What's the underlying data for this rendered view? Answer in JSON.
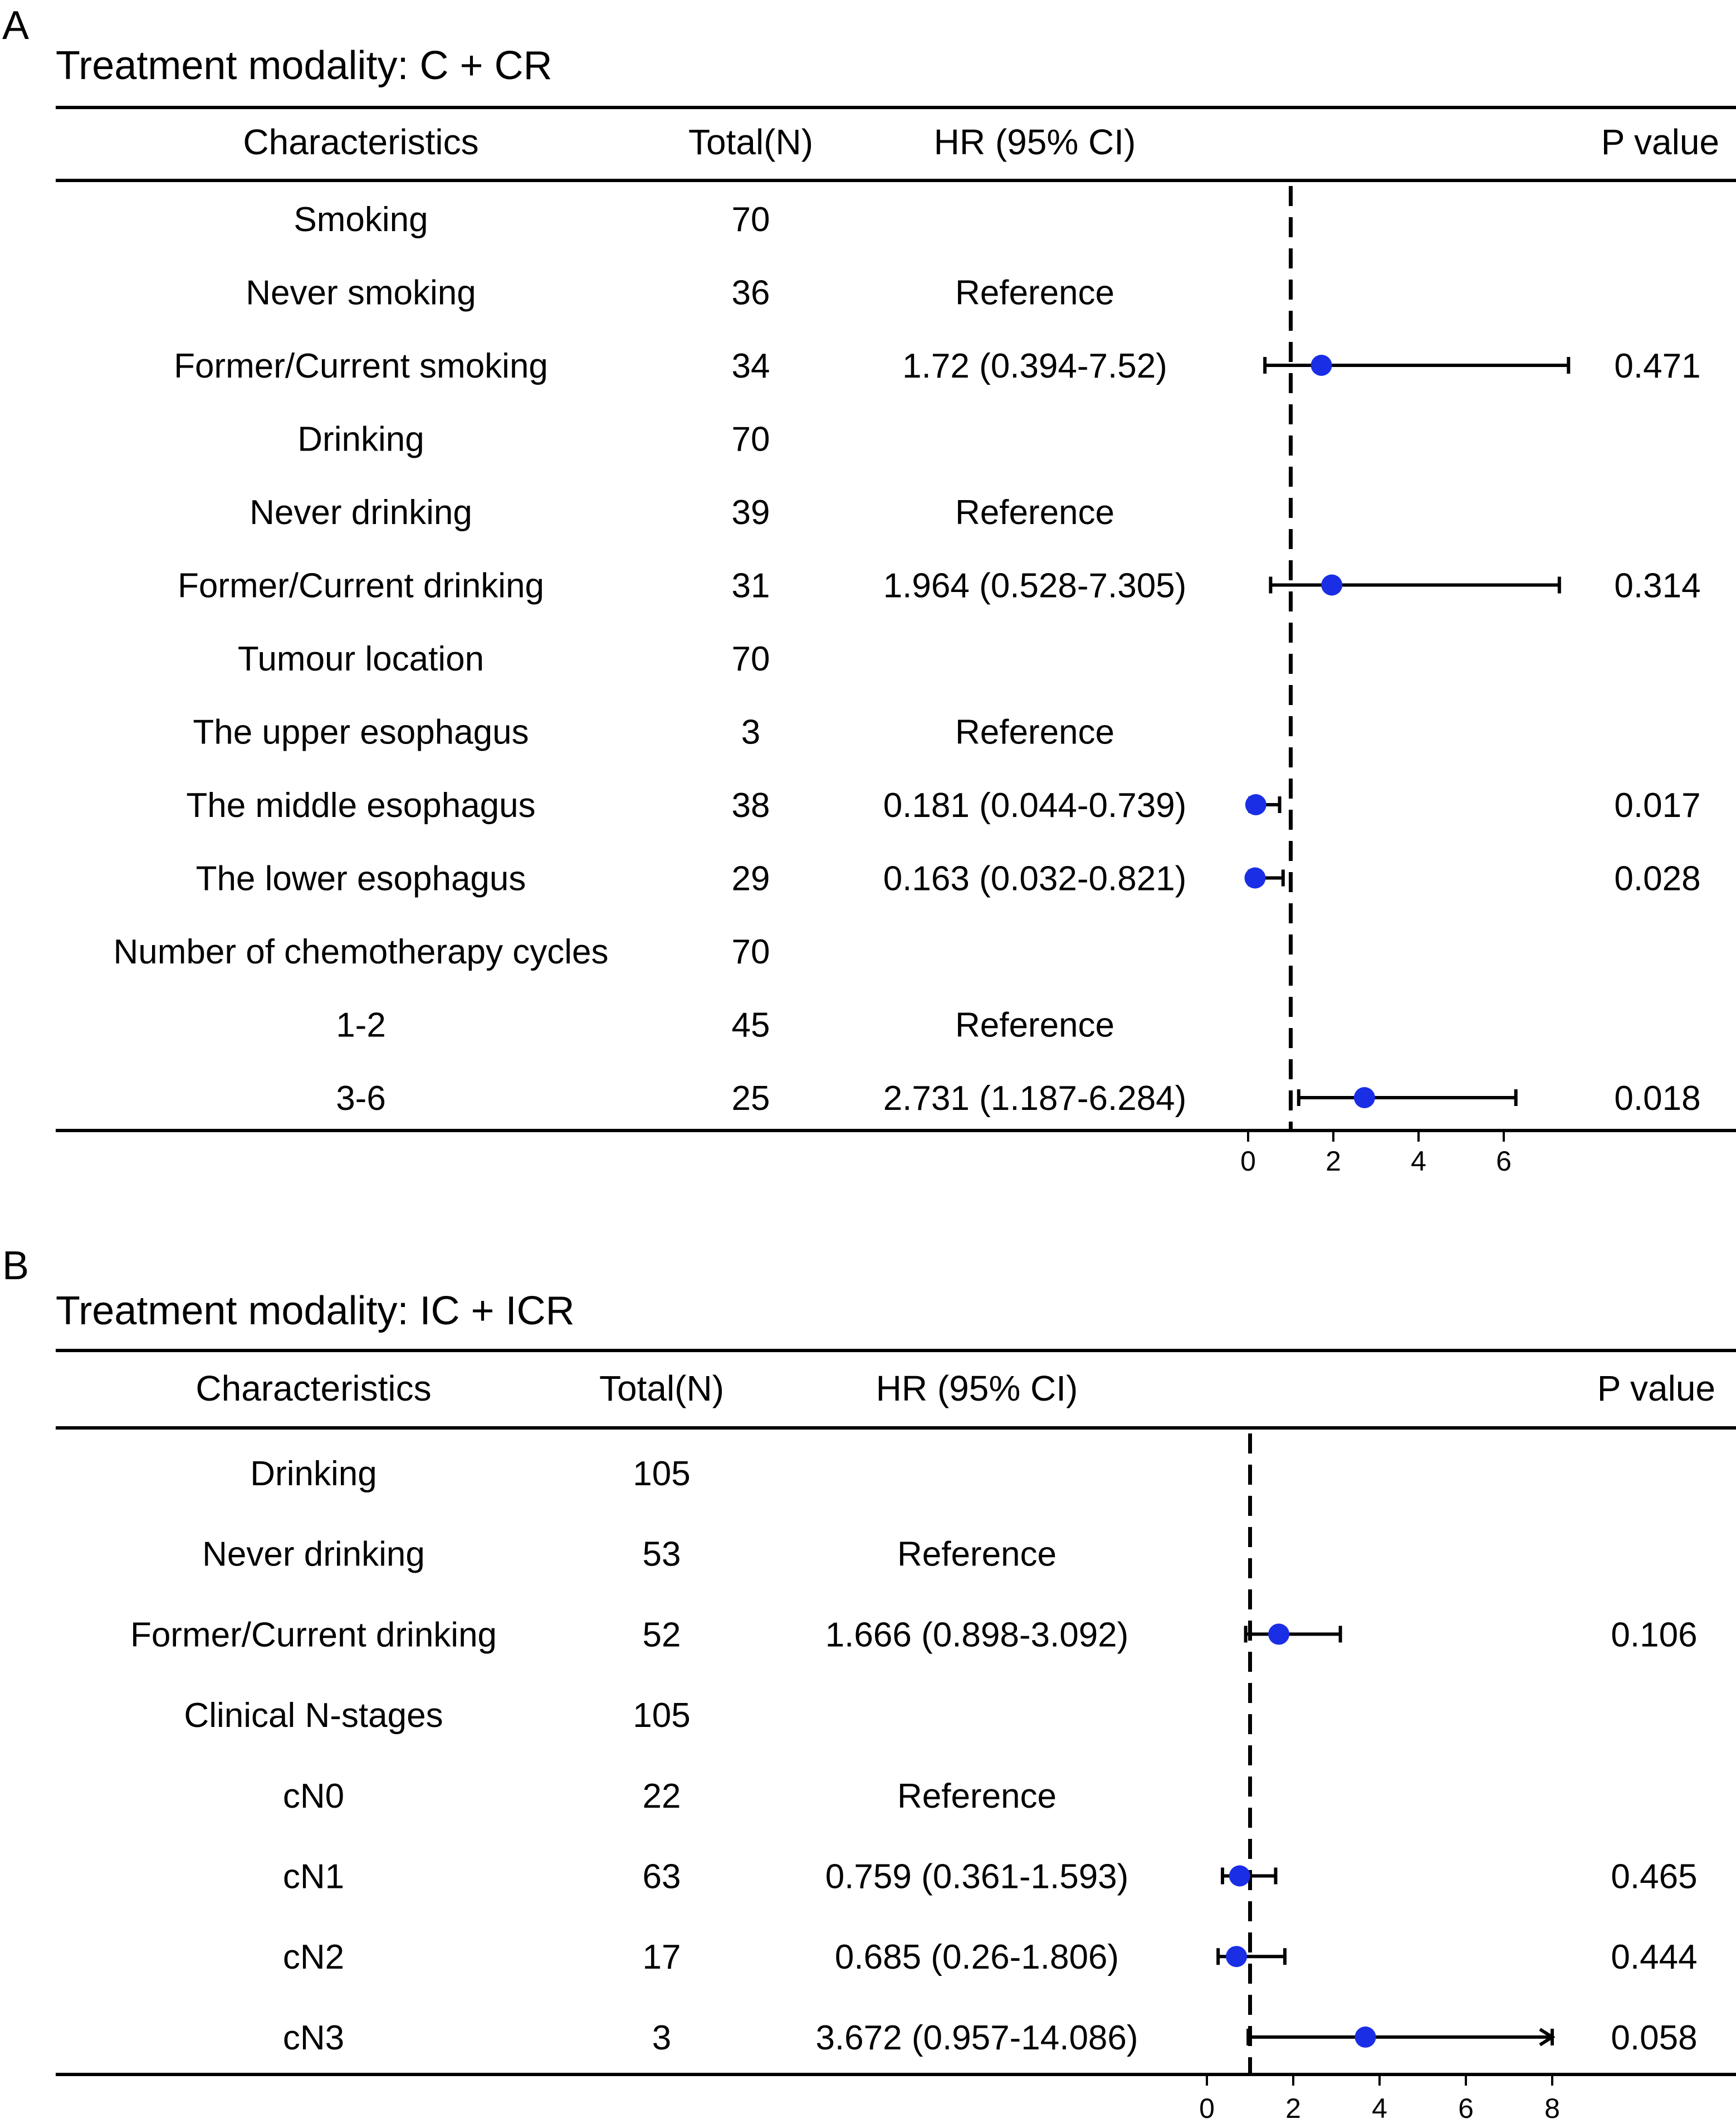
{
  "chart_data": [
    {
      "type": "forest",
      "panel_label": "A",
      "title": "Treatment modality: C + CR",
      "headers": {
        "characteristics": "Characteristics",
        "total": "Total(N)",
        "hr": "HR (95% CI)",
        "p": "P value"
      },
      "reference_line": 1,
      "xlim": [
        0,
        7
      ],
      "xticks": [
        0,
        2,
        4,
        6
      ],
      "xtick_labels": [
        "0",
        "2",
        "4",
        "6"
      ],
      "rows": [
        {
          "label": "Smoking",
          "n": "70",
          "hr_text": "",
          "p": ""
        },
        {
          "label": "Never smoking",
          "n": "36",
          "hr_text": "Reference",
          "p": ""
        },
        {
          "label": "Former/Current smoking",
          "n": "34",
          "hr_text": "1.72 (0.394-7.52)",
          "p": "0.471",
          "hr": 1.72,
          "lo": 0.394,
          "hi": 7.52
        },
        {
          "label": "Drinking",
          "n": "70",
          "hr_text": "",
          "p": ""
        },
        {
          "label": "Never drinking",
          "n": "39",
          "hr_text": "Reference",
          "p": ""
        },
        {
          "label": "Former/Current drinking",
          "n": "31",
          "hr_text": "1.964 (0.528-7.305)",
          "p": "0.314",
          "hr": 1.964,
          "lo": 0.528,
          "hi": 7.305
        },
        {
          "label": "Tumour location",
          "n": "70",
          "hr_text": "",
          "p": ""
        },
        {
          "label": "The upper esophagus",
          "n": "3",
          "hr_text": "Reference",
          "p": ""
        },
        {
          "label": "The middle esophagus",
          "n": "38",
          "hr_text": "0.181 (0.044-0.739)",
          "p": "0.017",
          "hr": 0.181,
          "lo": 0.044,
          "hi": 0.739
        },
        {
          "label": "The lower esophagus",
          "n": "29",
          "hr_text": "0.163 (0.032-0.821)",
          "p": "0.028",
          "hr": 0.163,
          "lo": 0.032,
          "hi": 0.821
        },
        {
          "label": "Number of chemotherapy cycles",
          "n": "70",
          "hr_text": "",
          "p": ""
        },
        {
          "label": "1-2",
          "n": "45",
          "hr_text": "Reference",
          "p": ""
        },
        {
          "label": "3-6",
          "n": "25",
          "hr_text": "2.731 (1.187-6.284)",
          "p": "0.018",
          "hr": 2.731,
          "lo": 1.187,
          "hi": 6.284
        }
      ]
    },
    {
      "type": "forest",
      "panel_label": "B",
      "title": "Treatment modality: IC + ICR",
      "headers": {
        "characteristics": "Characteristics",
        "total": "Total(N)",
        "hr": "HR (95% CI)",
        "p": "P value"
      },
      "reference_line": 1,
      "xlim": [
        0,
        8
      ],
      "xticks": [
        0,
        2,
        4,
        6,
        8
      ],
      "xtick_labels": [
        "0",
        "2",
        "4",
        "6",
        "8"
      ],
      "rows": [
        {
          "label": "Drinking",
          "n": "105",
          "hr_text": "",
          "p": ""
        },
        {
          "label": "Never drinking",
          "n": "53",
          "hr_text": "Reference",
          "p": ""
        },
        {
          "label": "Former/Current drinking",
          "n": "52",
          "hr_text": "1.666 (0.898-3.092)",
          "p": "0.106",
          "hr": 1.666,
          "lo": 0.898,
          "hi": 3.092
        },
        {
          "label": "Clinical N-stages",
          "n": "105",
          "hr_text": "",
          "p": ""
        },
        {
          "label": "cN0",
          "n": "22",
          "hr_text": "Reference",
          "p": ""
        },
        {
          "label": "cN1",
          "n": "63",
          "hr_text": "0.759 (0.361-1.593)",
          "p": "0.465",
          "hr": 0.759,
          "lo": 0.361,
          "hi": 1.593
        },
        {
          "label": "cN2",
          "n": "17",
          "hr_text": "0.685 (0.26-1.806)",
          "p": "0.444",
          "hr": 0.685,
          "lo": 0.26,
          "hi": 1.806
        },
        {
          "label": "cN3",
          "n": "3",
          "hr_text": "3.672 (0.957-14.086)",
          "p": "0.058",
          "hr": 3.672,
          "lo": 0.957,
          "hi": 14.086,
          "truncated": true
        }
      ]
    }
  ],
  "colors": {
    "point": "#1a2ee6",
    "line": "#000000",
    "text": "#000000",
    "background": "#ffffff"
  }
}
